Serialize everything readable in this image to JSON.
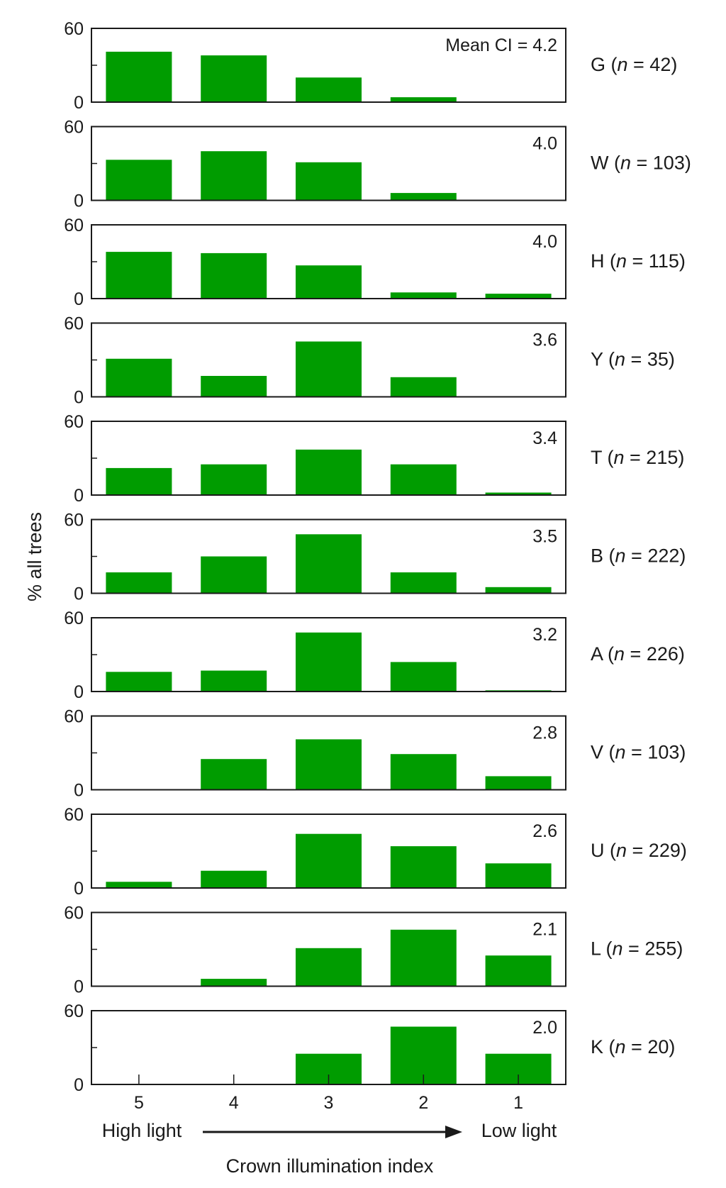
{
  "chart_data": {
    "type": "bar",
    "categories": [
      "5",
      "4",
      "3",
      "2",
      "1"
    ],
    "xlabel": "Crown illumination index",
    "ylabel": "% all trees",
    "ylim": [
      0,
      60
    ],
    "yticks": [
      "0",
      "60"
    ],
    "x_end_labels": {
      "left": "High light",
      "right": "Low light"
    },
    "bar_color": "#009c00",
    "panels": [
      {
        "species": "G",
        "n_text": "n = 42",
        "mean_text": "Mean CI = 4.2",
        "values": [
          41,
          38,
          20,
          4,
          0
        ]
      },
      {
        "species": "W",
        "n_text": "n = 103",
        "mean_text": "4.0",
        "values": [
          33,
          40,
          31,
          6,
          0
        ]
      },
      {
        "species": "H",
        "n_text": "n = 115",
        "mean_text": "4.0",
        "values": [
          38,
          37,
          27,
          5,
          4
        ]
      },
      {
        "species": "Y",
        "n_text": "n = 35",
        "mean_text": "3.6",
        "values": [
          31,
          17,
          45,
          16,
          0
        ]
      },
      {
        "species": "T",
        "n_text": "n = 215",
        "mean_text": "3.4",
        "values": [
          22,
          25,
          37,
          25,
          2
        ]
      },
      {
        "species": "B",
        "n_text": "n = 222",
        "mean_text": "3.5",
        "values": [
          17,
          30,
          48,
          17,
          5
        ]
      },
      {
        "species": "A",
        "n_text": "n = 226",
        "mean_text": "3.2",
        "values": [
          16,
          17,
          48,
          24,
          1
        ]
      },
      {
        "species": "V",
        "n_text": "n = 103",
        "mean_text": "2.8",
        "values": [
          0,
          25,
          41,
          29,
          11
        ]
      },
      {
        "species": "U",
        "n_text": "n = 229",
        "mean_text": "2.6",
        "values": [
          5,
          14,
          44,
          34,
          20
        ]
      },
      {
        "species": "L",
        "n_text": "n = 255",
        "mean_text": "2.1",
        "values": [
          0,
          6,
          31,
          46,
          25
        ]
      },
      {
        "species": "K",
        "n_text": "n = 20",
        "mean_text": "2.0",
        "values": [
          0,
          0,
          25,
          47,
          25
        ]
      }
    ]
  }
}
